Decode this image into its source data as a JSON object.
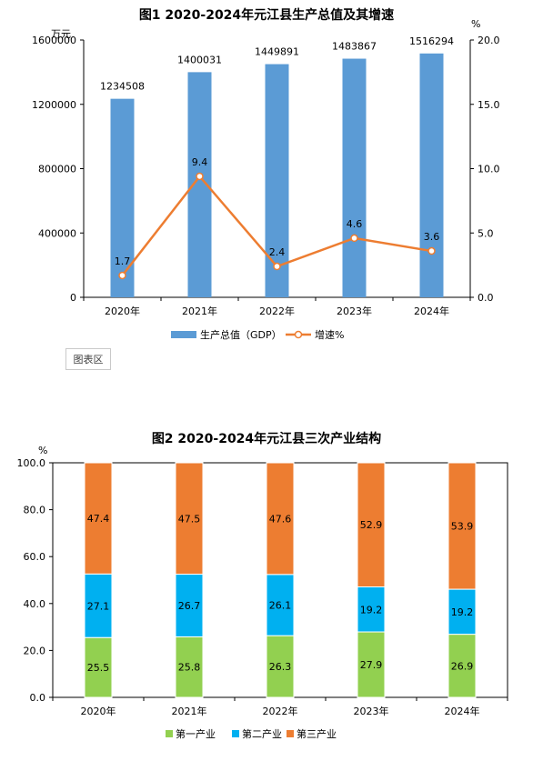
{
  "chart_data": [
    {
      "type": "bar+line",
      "title": "图1 2020-2024年元江县生产总值及其增速",
      "categories": [
        "2020年",
        "2021年",
        "2022年",
        "2023年",
        "2024年"
      ],
      "series": [
        {
          "name": "生产总值（GDP）",
          "type": "bar",
          "axis": "left",
          "color": "#5b9bd5",
          "values": [
            1234508,
            1400031,
            1449891,
            1483867,
            1516294
          ],
          "labels": [
            "1234508",
            "1400031",
            "1449891",
            "1483867",
            "1516294"
          ]
        },
        {
          "name": "增速%",
          "type": "line",
          "axis": "right",
          "color": "#ed7d31",
          "values": [
            1.7,
            9.4,
            2.4,
            4.6,
            3.6
          ],
          "labels": [
            "1.7",
            "9.4",
            "2.4",
            "4.6",
            "3.6"
          ]
        }
      ],
      "ylabel": "万元",
      "y2label": "%",
      "ylim": [
        0,
        1600000
      ],
      "y2lim": [
        0,
        20
      ],
      "yticks": [
        "0",
        "400000",
        "800000",
        "1200000",
        "1600000"
      ],
      "y2ticks": [
        "0.0",
        "5.0",
        "10.0",
        "15.0",
        "20.0"
      ],
      "legend_position": "bottom",
      "grid": false
    },
    {
      "type": "stacked-bar",
      "title": "图2 2020-2024年元江县三次产业结构",
      "categories": [
        "2020年",
        "2021年",
        "2022年",
        "2023年",
        "2024年"
      ],
      "series": [
        {
          "name": "第一产业",
          "color": "#92d050",
          "values": [
            25.5,
            25.8,
            26.3,
            27.9,
            26.9
          ],
          "labels": [
            "25.5",
            "25.8",
            "26.3",
            "27.9",
            "26.9"
          ]
        },
        {
          "name": "第二产业",
          "color": "#00b0f0",
          "values": [
            27.1,
            26.7,
            26.1,
            19.2,
            19.2
          ],
          "labels": [
            "27.1",
            "26.7",
            "26.1",
            "19.2",
            "19.2"
          ]
        },
        {
          "name": "第三产业",
          "color": "#ed7d31",
          "values": [
            47.4,
            47.5,
            47.6,
            52.9,
            53.9
          ],
          "labels": [
            "47.4",
            "47.5",
            "47.6",
            "52.9",
            "53.9"
          ]
        }
      ],
      "ylabel": "%",
      "ylim": [
        0,
        100
      ],
      "yticks": [
        "0.0",
        "20.0",
        "40.0",
        "60.0",
        "80.0",
        "100.0"
      ],
      "legend_position": "bottom",
      "grid": false
    }
  ],
  "overlay_label": "图表区"
}
